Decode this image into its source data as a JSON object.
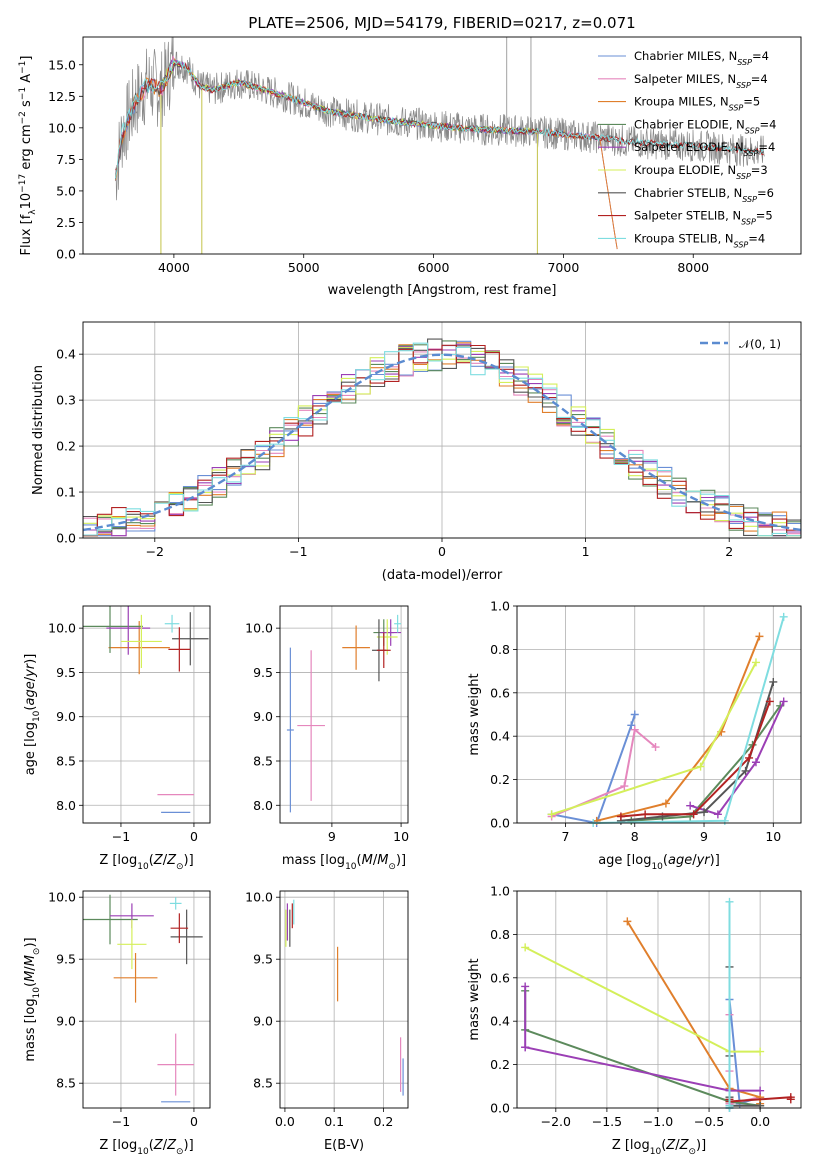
{
  "title": "PLATE=2506, MJD=54179, FIBERID=0217, z=0.071",
  "chart_data": [
    {
      "type": "line",
      "id": "spectrum",
      "title": "PLATE=2506, MJD=54179, FIBERID=0217, z=0.071",
      "xlabel": "wavelength [Angstrom, rest frame]",
      "ylabel": "Flux [fλ10⁻¹⁷ erg cm⁻² s⁻¹ A⁻¹]",
      "xlim": [
        3300,
        8830
      ],
      "ylim": [
        0,
        17.2
      ],
      "xticks": [
        4000,
        5000,
        6000,
        7000,
        8000
      ],
      "yticks": [
        0.0,
        2.5,
        5.0,
        7.5,
        10.0,
        12.5,
        15.0
      ],
      "grid": false,
      "legend_position": "top-right",
      "data_continuum": [
        [
          3550,
          6.2
        ],
        [
          3600,
          9.5
        ],
        [
          3700,
          12.0
        ],
        [
          3800,
          13.5
        ],
        [
          3900,
          13.0
        ],
        [
          4000,
          15.2
        ],
        [
          4100,
          14.8
        ],
        [
          4200,
          13.3
        ],
        [
          4300,
          13.0
        ],
        [
          4500,
          13.6
        ],
        [
          4700,
          13.0
        ],
        [
          4861,
          12.5
        ],
        [
          5000,
          12.0
        ],
        [
          5200,
          11.3
        ],
        [
          5500,
          10.8
        ],
        [
          5800,
          10.4
        ],
        [
          6000,
          10.2
        ],
        [
          6300,
          9.9
        ],
        [
          6563,
          9.8
        ],
        [
          6800,
          9.7
        ],
        [
          7000,
          9.5
        ],
        [
          7200,
          9.3
        ],
        [
          7300,
          9.2
        ],
        [
          7500,
          8.9
        ],
        [
          7800,
          8.7
        ],
        [
          8000,
          8.6
        ],
        [
          8200,
          8.4
        ],
        [
          8400,
          8.2
        ],
        [
          8550,
          8.1
        ]
      ],
      "data_features": [
        {
          "x": 6563,
          "y": 17.2,
          "kind": "emission"
        },
        {
          "x": 6750,
          "y": 17.2,
          "kind": "emission"
        },
        {
          "x": 3900,
          "y": 0.0,
          "kind": "gap"
        },
        {
          "x": 4215,
          "y": 0.0,
          "kind": "gap"
        },
        {
          "x": 6800,
          "y": 0.0,
          "kind": "gap"
        }
      ],
      "series": [
        {
          "name": "Chabrier MILES, N_SSP=4",
          "label_main": "Chabrier MILES, N",
          "label_sub": "SSP",
          "label_tail": "=4",
          "color": "#6a8fd6",
          "range": [
            3550,
            7420
          ]
        },
        {
          "name": "Salpeter MILES, N_SSP=4",
          "label_main": "Salpeter MILES, N",
          "label_sub": "SSP",
          "label_tail": "=4",
          "color": "#e587bd",
          "range": [
            3550,
            7420
          ]
        },
        {
          "name": "Kroupa MILES, N_SSP=5",
          "label_main": "Kroupa MILES, N",
          "label_sub": "SSP",
          "label_tail": "=5",
          "color": "#e07f2c",
          "range": [
            3550,
            7420
          ]
        },
        {
          "name": "Chabrier ELODIE, N_SSP=4",
          "label_main": "Chabrier ELODIE, N",
          "label_sub": "SSP",
          "label_tail": "=4",
          "color": "#5c8a5c",
          "range": [
            3900,
            6800
          ]
        },
        {
          "name": "Salpeter ELODIE, N_SSP=4",
          "label_main": "Salpeter ELODIE, N",
          "label_sub": "SSP",
          "label_tail": "=4",
          "color": "#9b3fb5",
          "range": [
            3900,
            6800
          ]
        },
        {
          "name": "Kroupa ELODIE, N_SSP=3",
          "label_main": "Kroupa ELODIE, N",
          "label_sub": "SSP",
          "label_tail": "=3",
          "color": "#d4ef5a",
          "range": [
            3900,
            6800
          ]
        },
        {
          "name": "Chabrier STELIB, N_SSP=6",
          "label_main": "Chabrier STELIB, N",
          "label_sub": "SSP",
          "label_tail": "=6",
          "color": "#555555",
          "range": [
            3550,
            8550
          ]
        },
        {
          "name": "Salpeter STELIB, N_SSP=5",
          "label_main": "Salpeter STELIB, N",
          "label_sub": "SSP",
          "label_tail": "=5",
          "color": "#b22222",
          "range": [
            3550,
            8550
          ]
        },
        {
          "name": "Kroupa STELIB, N_SSP=4",
          "label_main": "Kroupa STELIB, N",
          "label_sub": "SSP",
          "label_tail": "=4",
          "color": "#7fdde0",
          "range": [
            3550,
            8550
          ]
        }
      ]
    },
    {
      "type": "histogram",
      "id": "residuals",
      "xlabel": "(data-model)/error",
      "ylabel": "Normed distribution",
      "xlim": [
        -2.5,
        2.5
      ],
      "ylim": [
        0,
        0.47
      ],
      "xticks": [
        -2,
        -1,
        0,
        1,
        2
      ],
      "yticks": [
        0.0,
        0.1,
        0.2,
        0.3,
        0.4
      ],
      "grid": true,
      "legend_position": "top-right",
      "legend": "𝒩(0, 1)",
      "reference_curve": {
        "name": "N(0,1)",
        "mean": 0,
        "sigma": 1,
        "color": "#5b8bd0",
        "style": "dashed"
      }
    },
    {
      "type": "errorbar",
      "id": "age_vs_Z",
      "xlabel": "Z [log₁₀(Z/Z⊙)]",
      "ylabel": "age  [log₁₀(age/yr)]",
      "xlim": [
        -1.52,
        0.22
      ],
      "ylim": [
        7.8,
        10.25
      ],
      "xticks": [
        -1,
        0
      ],
      "yticks": [
        8.0,
        8.5,
        9.0,
        9.5,
        10.0
      ],
      "grid": true,
      "points": [
        {
          "x": -0.25,
          "y": 7.92,
          "xerr": 0.2,
          "yerr": 0,
          "color": "#6a8fd6"
        },
        {
          "x": -0.25,
          "y": 8.12,
          "xerr": 0.25,
          "yerr": 0,
          "color": "#e587bd"
        },
        {
          "x": -0.75,
          "y": 9.78,
          "xerr": 0.42,
          "yerr": 0.3,
          "color": "#e07f2c"
        },
        {
          "x": -1.15,
          "y": 10.02,
          "xerr": 0.45,
          "yerr": 0.3,
          "color": "#5c8a5c"
        },
        {
          "x": -0.9,
          "y": 10.0,
          "xerr": 0.3,
          "yerr": 0.3,
          "color": "#9b3fb5"
        },
        {
          "x": -0.72,
          "y": 9.85,
          "xerr": 0.28,
          "yerr": 0.3,
          "color": "#d4ef5a"
        },
        {
          "x": -0.05,
          "y": 9.88,
          "xerr": 0.25,
          "yerr": 0.3,
          "color": "#555555"
        },
        {
          "x": -0.2,
          "y": 9.76,
          "xerr": 0.15,
          "yerr": 0.25,
          "color": "#b22222"
        },
        {
          "x": -0.3,
          "y": 10.05,
          "xerr": 0.1,
          "yerr": 0.1,
          "color": "#7fdde0"
        }
      ]
    },
    {
      "type": "errorbar",
      "id": "age_vs_mass",
      "xlabel": "mass [log₁₀(M/M⊙)]",
      "ylabel": "",
      "xlim": [
        8.25,
        10.1
      ],
      "ylim": [
        7.8,
        10.25
      ],
      "xticks": [
        9,
        10
      ],
      "yticks": [
        8.0,
        8.5,
        9.0,
        9.5,
        10.0
      ],
      "grid": true,
      "points": [
        {
          "x": 8.4,
          "y": 8.85,
          "xerr": 0.05,
          "yerr": 0.93,
          "color": "#6a8fd6"
        },
        {
          "x": 8.7,
          "y": 8.9,
          "xerr": 0.2,
          "yerr": 0.85,
          "color": "#e587bd"
        },
        {
          "x": 9.35,
          "y": 9.78,
          "xerr": 0.2,
          "yerr": 0.25,
          "color": "#e07f2c"
        },
        {
          "x": 9.75,
          "y": 9.95,
          "xerr": 0.15,
          "yerr": 0.15,
          "color": "#5c8a5c"
        },
        {
          "x": 9.85,
          "y": 9.95,
          "xerr": 0.15,
          "yerr": 0.15,
          "color": "#9b3fb5"
        },
        {
          "x": 9.8,
          "y": 9.9,
          "xerr": 0.15,
          "yerr": 0.2,
          "color": "#d4ef5a"
        },
        {
          "x": 9.68,
          "y": 9.75,
          "xerr": 0.1,
          "yerr": 0.35,
          "color": "#555555"
        },
        {
          "x": 9.75,
          "y": 9.75,
          "xerr": 0.1,
          "yerr": 0.2,
          "color": "#b22222"
        },
        {
          "x": 9.95,
          "y": 10.05,
          "xerr": 0.05,
          "yerr": 0.1,
          "color": "#7fdde0"
        }
      ]
    },
    {
      "type": "line",
      "id": "weight_vs_age",
      "xlabel": "age  [log₁₀(age/yr)]",
      "ylabel": "mass weight",
      "xlim": [
        6.3,
        10.4
      ],
      "ylim": [
        0,
        1.0
      ],
      "xticks": [
        7,
        8,
        9,
        10
      ],
      "yticks": [
        0.0,
        0.2,
        0.4,
        0.6,
        0.8,
        1.0
      ],
      "grid": true,
      "series": [
        {
          "color": "#6a8fd6",
          "x": [
            6.8,
            7.45,
            7.95,
            8.0
          ],
          "y": [
            0.04,
            0.0,
            0.45,
            0.5
          ]
        },
        {
          "color": "#e587bd",
          "x": [
            6.8,
            7.85,
            8.0,
            8.3
          ],
          "y": [
            0.03,
            0.17,
            0.43,
            0.35
          ]
        },
        {
          "color": "#e07f2c",
          "x": [
            7.45,
            8.45,
            9.25,
            9.8
          ],
          "y": [
            0.01,
            0.09,
            0.42,
            0.86
          ]
        },
        {
          "color": "#5c8a5c",
          "x": [
            7.95,
            8.8,
            9.7,
            10.1
          ],
          "y": [
            0.01,
            0.03,
            0.36,
            0.54
          ]
        },
        {
          "color": "#9b3fb5",
          "x": [
            8.8,
            9.2,
            9.75,
            10.15
          ],
          "y": [
            0.08,
            0.04,
            0.28,
            0.56
          ]
        },
        {
          "color": "#d4ef5a",
          "x": [
            6.8,
            8.95,
            9.75
          ],
          "y": [
            0.04,
            0.26,
            0.74
          ]
        },
        {
          "color": "#555555",
          "x": [
            7.8,
            8.4,
            9.0,
            9.6,
            10.0
          ],
          "y": [
            0.01,
            0.03,
            0.05,
            0.24,
            0.65
          ]
        },
        {
          "color": "#b22222",
          "x": [
            7.8,
            8.15,
            8.85,
            9.65,
            9.95
          ],
          "y": [
            0.03,
            0.04,
            0.04,
            0.3,
            0.56
          ]
        },
        {
          "color": "#7fdde0",
          "x": [
            7.4,
            9.3,
            10.15
          ],
          "y": [
            0.0,
            0.01,
            0.95
          ]
        }
      ]
    },
    {
      "type": "errorbar",
      "id": "mass_vs_Z",
      "xlabel": "Z [log₁₀(Z/Z⊙)]",
      "ylabel": "mass [log₁₀(M/M⊙)]",
      "xlim": [
        -1.52,
        0.22
      ],
      "ylim": [
        8.3,
        10.05
      ],
      "xticks": [
        -1,
        0
      ],
      "yticks": [
        8.5,
        9.0,
        9.5,
        10.0
      ],
      "grid": true,
      "points": [
        {
          "x": -0.25,
          "y": 8.35,
          "xerr": 0.2,
          "yerr": 0,
          "color": "#6a8fd6"
        },
        {
          "x": -0.25,
          "y": 8.65,
          "xerr": 0.25,
          "yerr": 0.25,
          "color": "#e587bd"
        },
        {
          "x": -0.8,
          "y": 9.35,
          "xerr": 0.3,
          "yerr": 0.2,
          "color": "#e07f2c"
        },
        {
          "x": -1.15,
          "y": 9.82,
          "xerr": 0.38,
          "yerr": 0.2,
          "color": "#5c8a5c"
        },
        {
          "x": -0.85,
          "y": 9.85,
          "xerr": 0.3,
          "yerr": 0.1,
          "color": "#9b3fb5"
        },
        {
          "x": -0.85,
          "y": 9.62,
          "xerr": 0.2,
          "yerr": 0.2,
          "color": "#d4ef5a"
        },
        {
          "x": -0.1,
          "y": 9.68,
          "xerr": 0.22,
          "yerr": 0.22,
          "color": "#555555"
        },
        {
          "x": -0.2,
          "y": 9.75,
          "xerr": 0.12,
          "yerr": 0.12,
          "color": "#b22222"
        },
        {
          "x": -0.25,
          "y": 9.95,
          "xerr": 0.08,
          "yerr": 0.05,
          "color": "#7fdde0"
        }
      ]
    },
    {
      "type": "errorbar",
      "id": "mass_vs_ebv",
      "xlabel": "E(B-V)",
      "ylabel": "",
      "xlim": [
        -0.01,
        0.25
      ],
      "ylim": [
        8.3,
        10.05
      ],
      "xticks": [
        0.0,
        0.1,
        0.2
      ],
      "yticks": [
        8.5,
        9.0,
        9.5,
        10.0
      ],
      "grid": true,
      "points": [
        {
          "x": 0.24,
          "y": 8.55,
          "xerr": 0,
          "yerr": 0.15,
          "color": "#6a8fd6"
        },
        {
          "x": 0.235,
          "y": 8.65,
          "xerr": 0,
          "yerr": 0.22,
          "color": "#e587bd"
        },
        {
          "x": 0.107,
          "y": 9.38,
          "xerr": 0,
          "yerr": 0.22,
          "color": "#e07f2c"
        },
        {
          "x": 0.01,
          "y": 9.75,
          "xerr": 0,
          "yerr": 0.15,
          "color": "#555555"
        },
        {
          "x": 0.005,
          "y": 9.8,
          "xerr": 0,
          "yerr": 0.15,
          "color": "#9b3fb5"
        },
        {
          "x": 0.002,
          "y": 9.75,
          "xerr": 0,
          "yerr": 0.15,
          "color": "#d4ef5a"
        },
        {
          "x": 0.015,
          "y": 9.85,
          "xerr": 0,
          "yerr": 0.1,
          "color": "#b22222"
        },
        {
          "x": 0.018,
          "y": 9.88,
          "xerr": 0,
          "yerr": 0.1,
          "color": "#7fdde0"
        }
      ]
    },
    {
      "type": "line",
      "id": "weight_vs_Z",
      "xlabel": "Z [log₁₀(Z/Z⊙)]",
      "ylabel": "mass weight",
      "xlim": [
        -2.38,
        0.4
      ],
      "ylim": [
        0,
        1.0
      ],
      "xticks": [
        -2.0,
        -1.5,
        -1.0,
        -0.5,
        0.0
      ],
      "yticks": [
        0.0,
        0.2,
        0.4,
        0.6,
        0.8,
        1.0
      ],
      "grid": true,
      "series": [
        {
          "color": "#6a8fd6",
          "x": [
            -0.3,
            -0.3,
            -0.3,
            -0.2,
            0.0
          ],
          "y": [
            0.0,
            0.02,
            0.5,
            0.02,
            0.05
          ]
        },
        {
          "color": "#e587bd",
          "x": [
            -0.3,
            -0.3,
            -0.3,
            0.0
          ],
          "y": [
            0.17,
            0.43,
            0.02,
            0.05
          ]
        },
        {
          "color": "#e07f2c",
          "x": [
            -1.3,
            -0.3,
            0.0,
            0.0
          ],
          "y": [
            0.86,
            0.09,
            0.05,
            0.02
          ]
        },
        {
          "color": "#5c8a5c",
          "x": [
            -2.3,
            -2.3,
            -0.3,
            0.0
          ],
          "y": [
            0.54,
            0.36,
            0.03,
            0.01
          ]
        },
        {
          "color": "#9b3fb5",
          "x": [
            -2.3,
            -2.3,
            -2.3,
            -0.3,
            0.0
          ],
          "y": [
            0.56,
            0.28,
            0.28,
            0.08,
            0.08
          ]
        },
        {
          "color": "#d4ef5a",
          "x": [
            -2.3,
            -0.3,
            0.0
          ],
          "y": [
            0.74,
            0.26,
            0.26
          ]
        },
        {
          "color": "#555555",
          "x": [
            -0.3,
            -0.3,
            -0.3,
            -0.3,
            -0.3,
            0.0
          ],
          "y": [
            0.65,
            0.24,
            0.05,
            0.03,
            0.01,
            0.01
          ]
        },
        {
          "color": "#b22222",
          "x": [
            -0.3,
            -0.3,
            0.3,
            0.3
          ],
          "y": [
            0.04,
            0.03,
            0.05,
            0.04
          ]
        },
        {
          "color": "#7fdde0",
          "x": [
            -0.3,
            -0.3,
            -0.3
          ],
          "y": [
            0.95,
            0.01,
            0.0
          ]
        }
      ]
    }
  ]
}
